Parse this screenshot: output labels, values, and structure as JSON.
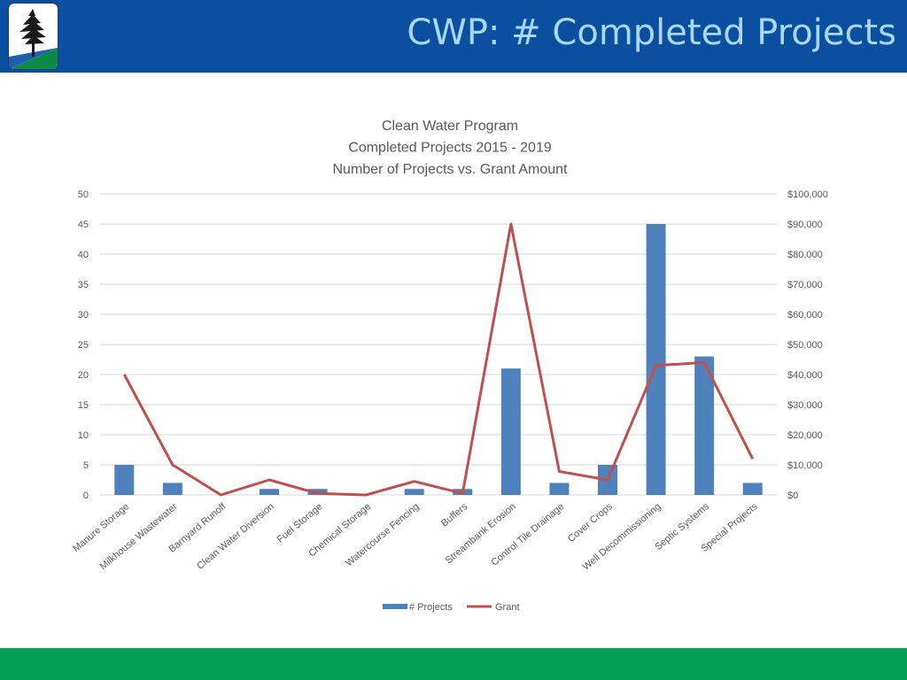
{
  "header": {
    "title": "CWP: # Completed Projects",
    "logo_icon": "pine-tree-logo-icon"
  },
  "colors": {
    "header_bg": "#0b4fa0",
    "title_text": "#a8d8f5",
    "footer_bg": "#00a155",
    "bar": "#4f81bd",
    "line": "#c0504d",
    "grid": "#d9d9d9"
  },
  "chart_data": {
    "type": "bar",
    "title_lines": [
      "Clean Water Program",
      "Completed Projects 2015 - 2019",
      "Number of Projects vs. Grant Amount"
    ],
    "categories": [
      "Manure Storage",
      "Milkhouse Wastewater",
      "Barnyard Runoff",
      "Clean Water Diversion",
      "Fuel Storage",
      "Chemical Storage",
      "Watercourse Fencing",
      "Buffers",
      "Streambank Erosion",
      "Control Tile Drainage",
      "Cover Crops",
      "Well Decommissioning",
      "Septic Systems",
      "Special Projects"
    ],
    "series": [
      {
        "name": "# Projects",
        "type": "bar",
        "axis": "left",
        "values": [
          5,
          2,
          0,
          1,
          1,
          0,
          1,
          1,
          21,
          2,
          5,
          45,
          23,
          2
        ]
      },
      {
        "name": "Grant",
        "type": "line",
        "axis": "right",
        "values": [
          40000,
          10000,
          0,
          5000,
          500,
          0,
          4500,
          500,
          90000,
          7800,
          5000,
          43000,
          44000,
          12000
        ]
      }
    ],
    "left_axis": {
      "ylim": [
        0,
        50
      ],
      "ticks": [
        "0",
        "5",
        "10",
        "15",
        "20",
        "25",
        "30",
        "35",
        "40",
        "45",
        "50"
      ]
    },
    "right_axis": {
      "ylim": [
        0,
        100000
      ],
      "ticks": [
        "$0",
        "$10,000",
        "$20,000",
        "$30,000",
        "$40,000",
        "$50,000",
        "$60,000",
        "$70,000",
        "$80,000",
        "$90,000",
        "$100,000"
      ]
    },
    "grid": true,
    "legend_position": "bottom"
  }
}
